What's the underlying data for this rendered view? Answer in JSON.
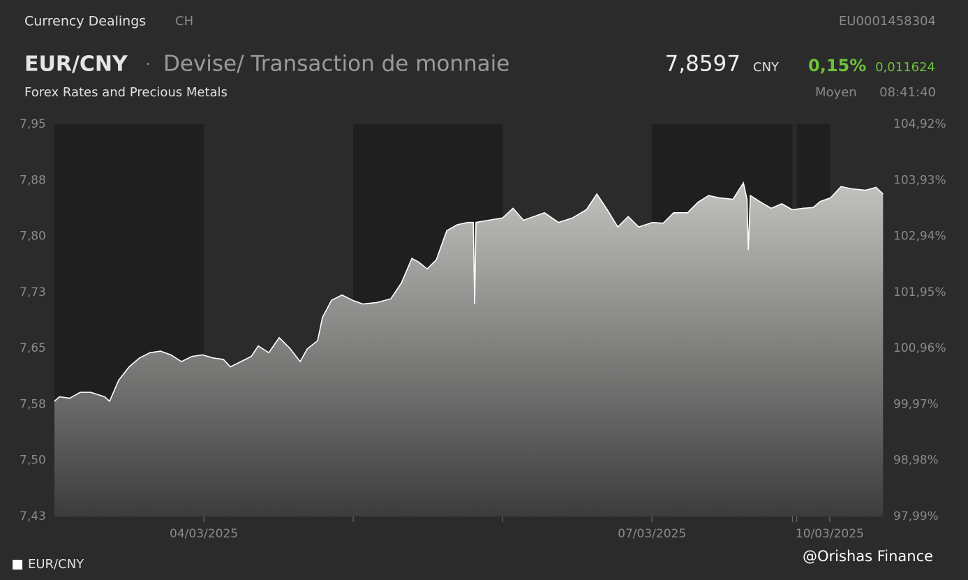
{
  "header": {
    "section": "Currency Dealings",
    "country": "CH",
    "isin": "EU0001458304",
    "symbol": "EUR/CNY",
    "separator": "·",
    "description": "Devise/ Transaction de monnaie",
    "price": "7,8597",
    "currency": "CNY",
    "change_percent": "0,15%",
    "change": "0,011624",
    "subtitle": "Forex Rates and Precious Metals",
    "quote_type": "Moyen",
    "time": "08:41:40"
  },
  "watermark": "@Orishas Finance",
  "chart_data": {
    "type": "area",
    "x": [
      0,
      0.033,
      0.103,
      0.173,
      0.243,
      0.336,
      0.369,
      0.43,
      0.5,
      0.57,
      0.64,
      0.71,
      0.78,
      0.85,
      0.921,
      0.991,
      1.061,
      1.131,
      1.178,
      1.248,
      1.318,
      1.364,
      1.435,
      1.505,
      1.575,
      1.645,
      1.692,
      1.762,
      1.794,
      1.855,
      1.925,
      1.995,
      2.065,
      2.159,
      2.252,
      2.322,
      2.393,
      2.439,
      2.495,
      2.556,
      2.626,
      2.696,
      2.766,
      2.804,
      2.813,
      2.822,
      2.907,
      3.0,
      3.07,
      3.14,
      3.21,
      3.28,
      3.374,
      3.467,
      3.561,
      3.631,
      3.701,
      3.771,
      3.841,
      3.911,
      4.005,
      4.075,
      4.145,
      4.238,
      4.308,
      4.379,
      4.449,
      4.542,
      4.612,
      4.636,
      4.645,
      4.659,
      4.729,
      4.799,
      4.869,
      4.939,
      5.009,
      5.079,
      5.126,
      5.196,
      5.266,
      5.336,
      5.43,
      5.5,
      5.547
    ],
    "series": [
      {
        "name": "EUR/CNY",
        "color": "#ffffff",
        "values": [
          7.582,
          7.588,
          7.586,
          7.594,
          7.594,
          7.588,
          7.582,
          7.61,
          7.628,
          7.64,
          7.647,
          7.649,
          7.644,
          7.635,
          7.642,
          7.644,
          7.64,
          7.638,
          7.628,
          7.635,
          7.642,
          7.656,
          7.647,
          7.667,
          7.653,
          7.635,
          7.652,
          7.663,
          7.694,
          7.717,
          7.724,
          7.717,
          7.712,
          7.714,
          7.719,
          7.74,
          7.773,
          7.768,
          7.759,
          7.771,
          7.81,
          7.818,
          7.821,
          7.821,
          7.712,
          7.821,
          7.824,
          7.827,
          7.84,
          7.824,
          7.829,
          7.834,
          7.821,
          7.827,
          7.838,
          7.859,
          7.838,
          7.815,
          7.829,
          7.815,
          7.821,
          7.82,
          7.834,
          7.834,
          7.848,
          7.857,
          7.854,
          7.852,
          7.874,
          7.852,
          7.784,
          7.857,
          7.848,
          7.84,
          7.846,
          7.838,
          7.84,
          7.841,
          7.849,
          7.854,
          7.869,
          7.866,
          7.864,
          7.868,
          7.859
        ]
      }
    ],
    "xlim": [
      0,
      5.555
    ],
    "xticks": [
      {
        "value": 1,
        "label": "04/03/2025"
      },
      {
        "value": 4,
        "label": "07/03/2025"
      },
      {
        "value": 5.19,
        "label": "10/03/2025"
      }
    ],
    "minor_xticks": [
      2,
      3,
      4.94,
      4.97
    ],
    "shaded_ranges": [
      [
        0,
        1
      ],
      [
        2,
        3
      ],
      [
        4,
        4.94
      ],
      [
        4.97,
        5.19
      ]
    ],
    "ylim": [
      7.428,
      7.9523
    ],
    "yticks": [
      {
        "value": 7.428,
        "label": "7,43"
      },
      {
        "value": 7.5029,
        "label": "7,50"
      },
      {
        "value": 7.5778,
        "label": "7,58"
      },
      {
        "value": 7.6527,
        "label": "7,65"
      },
      {
        "value": 7.7276,
        "label": "7,73"
      },
      {
        "value": 7.8025,
        "label": "7,80"
      },
      {
        "value": 7.8774,
        "label": "7,88"
      },
      {
        "value": 7.9523,
        "label": "7,95"
      }
    ],
    "y2lim": [
      97.99,
      104.92
    ],
    "y2ticks": [
      {
        "value": 97.99,
        "label": "97,99%"
      },
      {
        "value": 98.98,
        "label": "98,98%"
      },
      {
        "value": 99.97,
        "label": "99,97%"
      },
      {
        "value": 100.96,
        "label": "100,96%"
      },
      {
        "value": 101.95,
        "label": "101,95%"
      },
      {
        "value": 102.94,
        "label": "102,94%"
      },
      {
        "value": 103.93,
        "label": "103,93%"
      },
      {
        "value": 104.92,
        "label": "104,92%"
      }
    ]
  }
}
